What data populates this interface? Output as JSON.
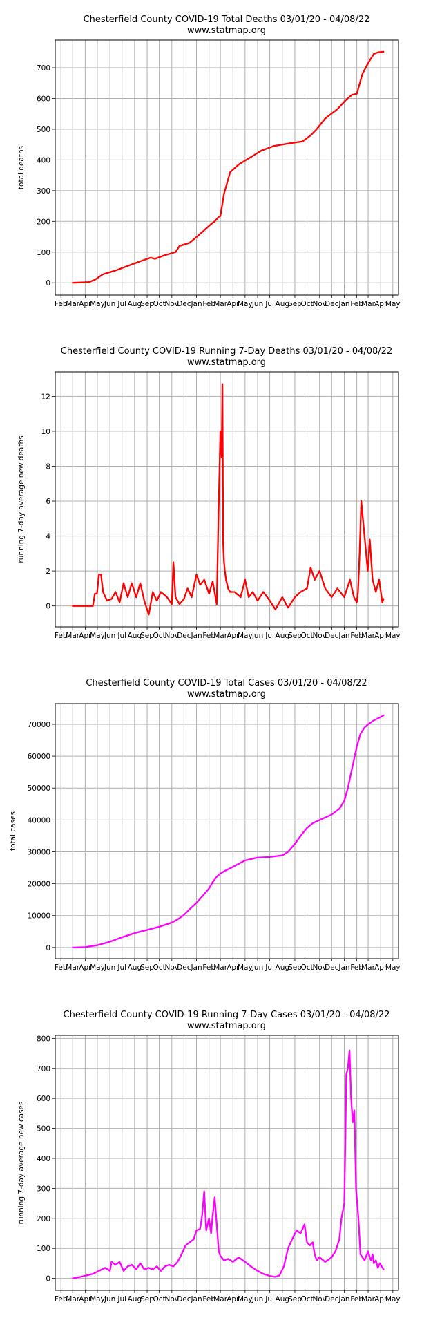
{
  "chart_data": [
    {
      "type": "line",
      "title": "Chesterfield County COVID-19 Total Deaths 03/01/20 - 04/08/22",
      "subtitle": "www.statmap.org",
      "xlabel": "",
      "ylabel": "total deaths",
      "ylim": [
        -40,
        790
      ],
      "yticks": [
        0,
        100,
        200,
        300,
        400,
        500,
        600,
        700
      ],
      "grid": true,
      "color": "#ff0000",
      "x_tick_labels": [
        "Feb",
        "Mar",
        "Apr",
        "May",
        "Jun",
        "Jul",
        "Aug",
        "Sep",
        "Oct",
        "Nov",
        "Dec",
        "Jan",
        "Feb",
        "Mar",
        "Apr",
        "May",
        "Jun",
        "Jul",
        "Aug",
        "Sep",
        "Oct",
        "Nov",
        "Dec",
        "Jan",
        "Feb",
        "Mar",
        "Apr",
        "May"
      ],
      "series": [
        {
          "x": [
            "2020-03-01",
            "2020-04-10",
            "2020-04-25",
            "2020-05-15",
            "2020-06-15",
            "2020-07-15",
            "2020-08-15",
            "2020-09-10",
            "2020-09-20",
            "2020-10-15",
            "2020-11-10",
            "2020-11-20",
            "2020-12-15",
            "2021-01-15",
            "2021-02-05",
            "2021-02-15",
            "2021-02-25",
            "2021-03-01",
            "2021-03-10",
            "2021-03-25",
            "2021-04-15",
            "2021-05-10",
            "2021-06-10",
            "2021-07-10",
            "2021-08-10",
            "2021-08-25",
            "2021-09-20",
            "2021-10-10",
            "2021-10-25",
            "2021-11-15",
            "2021-12-15",
            "2022-01-05",
            "2022-01-20",
            "2022-02-01",
            "2022-02-15",
            "2022-03-01",
            "2022-03-15",
            "2022-03-25",
            "2022-04-08"
          ],
          "y": [
            0,
            2,
            10,
            28,
            40,
            55,
            70,
            82,
            78,
            90,
            100,
            120,
            130,
            165,
            190,
            200,
            215,
            217,
            290,
            360,
            385,
            405,
            430,
            445,
            452,
            455,
            460,
            480,
            500,
            535,
            565,
            595,
            612,
            615,
            680,
            715,
            745,
            750,
            752
          ]
        }
      ]
    },
    {
      "type": "line",
      "title": "Chesterfield County COVID-19 Running 7-Day Deaths 03/01/20 - 04/08/22",
      "subtitle": "www.statmap.org",
      "xlabel": "",
      "ylabel": "running 7-day average new deaths",
      "ylim": [
        -1.2,
        13.4
      ],
      "yticks": [
        0,
        2,
        4,
        6,
        8,
        10,
        12
      ],
      "grid": true,
      "color": "#ff0000",
      "x_tick_labels": [
        "Feb",
        "Mar",
        "Apr",
        "May",
        "Jun",
        "Jul",
        "Aug",
        "Sep",
        "Oct",
        "Nov",
        "Dec",
        "Jan",
        "Feb",
        "Mar",
        "Apr",
        "May",
        "Jun",
        "Jul",
        "Aug",
        "Sep",
        "Oct",
        "Nov",
        "Dec",
        "Jan",
        "Feb",
        "Mar",
        "Apr",
        "May"
      ],
      "series": [
        {
          "x": [
            "2020-03-01",
            "2020-04-20",
            "2020-04-25",
            "2020-04-30",
            "2020-05-05",
            "2020-05-10",
            "2020-05-15",
            "2020-05-25",
            "2020-06-05",
            "2020-06-15",
            "2020-06-25",
            "2020-07-05",
            "2020-07-15",
            "2020-07-25",
            "2020-08-05",
            "2020-08-15",
            "2020-08-25",
            "2020-09-05",
            "2020-09-15",
            "2020-09-25",
            "2020-10-05",
            "2020-10-20",
            "2020-11-01",
            "2020-11-05",
            "2020-11-10",
            "2020-11-20",
            "2020-12-01",
            "2020-12-10",
            "2020-12-20",
            "2021-01-01",
            "2021-01-10",
            "2021-01-20",
            "2021-02-01",
            "2021-02-10",
            "2021-02-20",
            "2021-02-25",
            "2021-03-01",
            "2021-03-04",
            "2021-03-06",
            "2021-03-08",
            "2021-03-10",
            "2021-03-12",
            "2021-03-15",
            "2021-03-20",
            "2021-03-25",
            "2021-04-05",
            "2021-04-20",
            "2021-05-01",
            "2021-05-10",
            "2021-05-20",
            "2021-06-01",
            "2021-06-15",
            "2021-07-01",
            "2021-07-15",
            "2021-08-01",
            "2021-08-15",
            "2021-09-01",
            "2021-09-15",
            "2021-10-01",
            "2021-10-10",
            "2021-10-20",
            "2021-11-01",
            "2021-11-15",
            "2021-12-01",
            "2021-12-15",
            "2022-01-01",
            "2022-01-15",
            "2022-01-25",
            "2022-02-01",
            "2022-02-04",
            "2022-02-08",
            "2022-02-12",
            "2022-02-20",
            "2022-02-28",
            "2022-03-05",
            "2022-03-12",
            "2022-03-20",
            "2022-03-28",
            "2022-04-05",
            "2022-04-08"
          ],
          "y": [
            0,
            0,
            0.7,
            0.7,
            1.8,
            1.8,
            0.8,
            0.3,
            0.4,
            0.8,
            0.2,
            1.3,
            0.5,
            1.3,
            0.5,
            1.3,
            0.3,
            -0.5,
            0.8,
            0.3,
            0.8,
            0.5,
            0.1,
            2.5,
            0.5,
            0.1,
            0.4,
            1.0,
            0.5,
            1.8,
            1.2,
            1.5,
            0.7,
            1.4,
            0.1,
            6.0,
            10.0,
            8.5,
            12.7,
            3.5,
            2.5,
            2.0,
            1.5,
            1.0,
            0.8,
            0.8,
            0.5,
            1.5,
            0.5,
            0.8,
            0.3,
            0.8,
            0.3,
            -0.2,
            0.5,
            -0.1,
            0.5,
            0.8,
            1.0,
            2.2,
            1.5,
            2.0,
            1.0,
            0.5,
            1.0,
            0.5,
            1.5,
            0.5,
            0.2,
            0.8,
            3.0,
            6.0,
            4.0,
            2.0,
            3.8,
            1.5,
            0.8,
            1.5,
            0.2,
            0.4
          ]
        }
      ]
    },
    {
      "type": "line",
      "title": "Chesterfield County COVID-19 Total Cases 03/01/20 - 04/08/22",
      "subtitle": "www.statmap.org",
      "xlabel": "",
      "ylabel": "total cases",
      "ylim": [
        -3500,
        76500
      ],
      "yticks": [
        0,
        10000,
        20000,
        30000,
        40000,
        50000,
        60000,
        70000
      ],
      "grid": true,
      "color": "#ff00ff",
      "x_tick_labels": [
        "Feb",
        "Mar",
        "Apr",
        "May",
        "Jun",
        "Jul",
        "Aug",
        "Sep",
        "Oct",
        "Nov",
        "Dec",
        "Jan",
        "Feb",
        "Mar",
        "Apr",
        "May",
        "Jun",
        "Jul",
        "Aug",
        "Sep",
        "Oct",
        "Nov",
        "Dec",
        "Jan",
        "Feb",
        "Mar",
        "Apr",
        "May"
      ],
      "series": [
        {
          "x": [
            "2020-03-01",
            "2020-04-01",
            "2020-05-01",
            "2020-06-01",
            "2020-07-01",
            "2020-08-01",
            "2020-09-01",
            "2020-10-01",
            "2020-11-01",
            "2020-11-15",
            "2020-12-01",
            "2020-12-15",
            "2021-01-01",
            "2021-01-15",
            "2021-02-01",
            "2021-02-10",
            "2021-02-20",
            "2021-03-01",
            "2021-03-15",
            "2021-04-01",
            "2021-05-01",
            "2021-06-01",
            "2021-07-01",
            "2021-08-01",
            "2021-08-15",
            "2021-09-01",
            "2021-09-15",
            "2021-10-01",
            "2021-10-15",
            "2021-11-01",
            "2021-12-01",
            "2021-12-20",
            "2022-01-01",
            "2022-01-10",
            "2022-01-20",
            "2022-02-01",
            "2022-02-10",
            "2022-02-20",
            "2022-03-01",
            "2022-03-15",
            "2022-04-01",
            "2022-04-08"
          ],
          "y": [
            0,
            100,
            700,
            1800,
            3200,
            4500,
            5500,
            6500,
            7800,
            8800,
            10200,
            12000,
            14000,
            16000,
            18500,
            20500,
            22200,
            23200,
            24200,
            25300,
            27300,
            28200,
            28400,
            28900,
            30000,
            32500,
            35000,
            37500,
            39000,
            40000,
            41700,
            43500,
            46000,
            50000,
            56000,
            63000,
            67000,
            69000,
            70000,
            71200,
            72300,
            72800
          ]
        }
      ]
    },
    {
      "type": "line",
      "title": "Chesterfield County COVID-19 Running 7-Day Cases 03/01/20 - 04/08/22",
      "subtitle": "www.statmap.org",
      "xlabel": "",
      "ylabel": "running 7-day average new cases",
      "ylim": [
        -40,
        810
      ],
      "yticks": [
        0,
        100,
        200,
        300,
        400,
        500,
        600,
        700,
        800
      ],
      "grid": true,
      "color": "#ff00ff",
      "x_tick_labels": [
        "Feb",
        "Mar",
        "Apr",
        "May",
        "Jun",
        "Jul",
        "Aug",
        "Sep",
        "Oct",
        "Nov",
        "Dec",
        "Jan",
        "Feb",
        "Mar",
        "Apr",
        "May",
        "Jun",
        "Jul",
        "Aug",
        "Sep",
        "Oct",
        "Nov",
        "Dec",
        "Jan",
        "Feb",
        "Mar",
        "Apr",
        "May"
      ],
      "series": [
        {
          "x": [
            "2020-03-01",
            "2020-03-20",
            "2020-04-05",
            "2020-04-20",
            "2020-05-05",
            "2020-05-20",
            "2020-06-01",
            "2020-06-05",
            "2020-06-15",
            "2020-06-25",
            "2020-07-05",
            "2020-07-15",
            "2020-07-25",
            "2020-08-05",
            "2020-08-15",
            "2020-08-25",
            "2020-09-05",
            "2020-09-15",
            "2020-09-25",
            "2020-10-05",
            "2020-10-15",
            "2020-10-25",
            "2020-11-05",
            "2020-11-15",
            "2020-11-25",
            "2020-12-05",
            "2020-12-15",
            "2020-12-25",
            "2021-01-01",
            "2021-01-10",
            "2021-01-15",
            "2021-01-20",
            "2021-01-25",
            "2021-02-01",
            "2021-02-06",
            "2021-02-10",
            "2021-02-15",
            "2021-02-20",
            "2021-02-25",
            "2021-03-01",
            "2021-03-10",
            "2021-03-20",
            "2021-04-01",
            "2021-04-15",
            "2021-05-01",
            "2021-05-15",
            "2021-06-01",
            "2021-06-15",
            "2021-07-01",
            "2021-07-15",
            "2021-07-25",
            "2021-08-05",
            "2021-08-15",
            "2021-08-25",
            "2021-09-05",
            "2021-09-15",
            "2021-09-25",
            "2021-10-01",
            "2021-10-08",
            "2021-10-15",
            "2021-10-20",
            "2021-10-25",
            "2021-11-01",
            "2021-11-15",
            "2021-12-01",
            "2021-12-10",
            "2021-12-20",
            "2021-12-25",
            "2022-01-01",
            "2022-01-04",
            "2022-01-06",
            "2022-01-10",
            "2022-01-14",
            "2022-01-18",
            "2022-01-22",
            "2022-01-26",
            "2022-01-30",
            "2022-02-05",
            "2022-02-10",
            "2022-02-20",
            "2022-03-01",
            "2022-03-05",
            "2022-03-08",
            "2022-03-12",
            "2022-03-15",
            "2022-03-20",
            "2022-03-25",
            "2022-03-30",
            "2022-04-08"
          ],
          "y": [
            0,
            5,
            10,
            15,
            25,
            35,
            25,
            55,
            45,
            55,
            25,
            40,
            45,
            30,
            50,
            30,
            35,
            30,
            40,
            25,
            40,
            45,
            40,
            55,
            80,
            110,
            120,
            130,
            160,
            165,
            210,
            290,
            160,
            200,
            150,
            210,
            270,
            180,
            90,
            75,
            60,
            65,
            55,
            70,
            55,
            40,
            25,
            15,
            8,
            5,
            10,
            40,
            100,
            130,
            160,
            150,
            180,
            120,
            110,
            120,
            80,
            60,
            70,
            55,
            70,
            90,
            130,
            200,
            250,
            470,
            680,
            700,
            760,
            600,
            520,
            560,
            300,
            200,
            80,
            60,
            90,
            70,
            60,
            80,
            50,
            60,
            35,
            50,
            30
          ]
        }
      ]
    }
  ]
}
